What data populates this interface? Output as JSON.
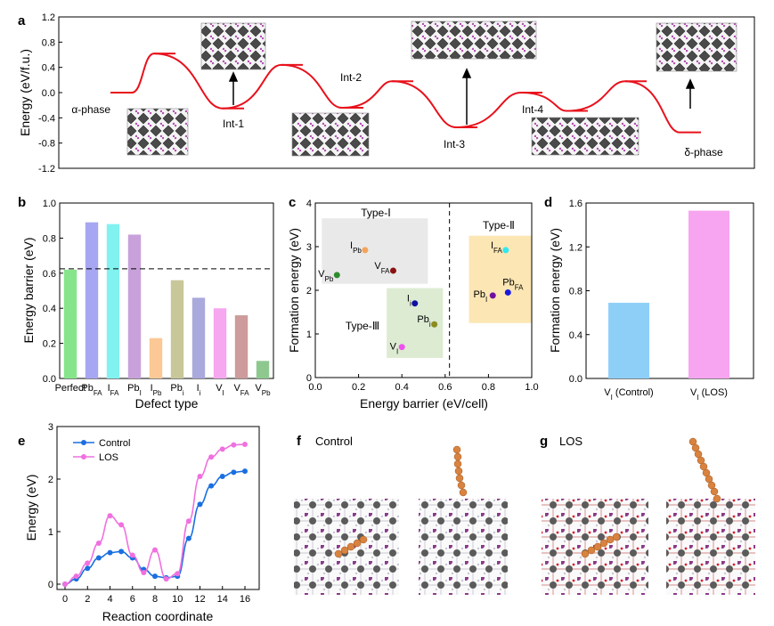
{
  "panel_letters": [
    "a",
    "b",
    "c",
    "d",
    "e",
    "f",
    "g"
  ],
  "chart_data": [
    {
      "panel": "a",
      "type": "line",
      "ylabel": "Energy (eV/f.u.)",
      "ylim": [
        -1.2,
        1.2
      ],
      "yticks": [
        "1.2",
        "0.8",
        "0.4",
        "0.0",
        "-0.4",
        "-0.8",
        "-1.2"
      ],
      "ytick_values": [
        1.2,
        0.8,
        0.4,
        0.0,
        -0.4,
        -0.8,
        -1.2
      ],
      "states": [
        {
          "label": "α-phase",
          "value": 0.0
        },
        {
          "label": "",
          "value": 0.62
        },
        {
          "label": "Int-1",
          "value": -0.25
        },
        {
          "label": "",
          "value": 0.44
        },
        {
          "label": "Int-2",
          "value": -0.24
        },
        {
          "label": "",
          "value": 0.18
        },
        {
          "label": "Int-3",
          "value": -0.55
        },
        {
          "label": "",
          "value": 0.0
        },
        {
          "label": "Int-4",
          "value": -0.29
        },
        {
          "label": "",
          "value": 0.18
        },
        {
          "label": "δ-phase",
          "value": -0.63
        }
      ],
      "line_color": "#e8111b"
    },
    {
      "panel": "b",
      "type": "bar",
      "xlabel": "Defect type",
      "ylabel": "Energy barrier (eV)",
      "ylim": [
        0,
        1.0
      ],
      "yticks": [
        "0.0",
        "0.2",
        "0.4",
        "0.6",
        "0.8",
        "1.0"
      ],
      "ytick_values": [
        0,
        0.2,
        0.4,
        0.6,
        0.8,
        1.0
      ],
      "categories": [
        {
          "main": "Perfect",
          "sub": ""
        },
        {
          "main": "Pb",
          "sub": "FA"
        },
        {
          "main": "I",
          "sub": "FA"
        },
        {
          "main": "Pb",
          "sub": "I"
        },
        {
          "main": "I",
          "sub": "Pb"
        },
        {
          "main": "Pb",
          "sub": "i"
        },
        {
          "main": "I",
          "sub": "i"
        },
        {
          "main": "V",
          "sub": "I"
        },
        {
          "main": "V",
          "sub": "FA"
        },
        {
          "main": "V",
          "sub": "Pb"
        }
      ],
      "values": [
        0.62,
        0.89,
        0.88,
        0.82,
        0.23,
        0.56,
        0.46,
        0.4,
        0.36,
        0.1
      ],
      "colors": [
        "#86e58a",
        "#a7a6f2",
        "#82f2f0",
        "#c8a1db",
        "#fbc896",
        "#c8c799",
        "#a9a9dc",
        "#f6a7f0",
        "#cd9b9b",
        "#8fc88f"
      ],
      "reference_line": 0.625
    },
    {
      "panel": "c",
      "type": "scatter",
      "xlabel": "Energy barrier (eV/cell)",
      "ylabel": "Formation energy (eV)",
      "xlim": [
        0.0,
        1.0
      ],
      "ylim": [
        0,
        4
      ],
      "xticks": [
        "0.0",
        "0.2",
        "0.4",
        "0.6",
        "0.8",
        "1.0"
      ],
      "xtick_values": [
        0,
        0.2,
        0.4,
        0.6,
        0.8,
        1.0
      ],
      "yticks": [
        "0",
        "1",
        "2",
        "3",
        "4"
      ],
      "ytick_values": [
        0,
        1,
        2,
        3,
        4
      ],
      "divider_x": 0.62,
      "groups": [
        {
          "name": "Type-Ⅰ",
          "x0": 0.03,
          "x1": 0.52,
          "y0": 2.15,
          "y1": 3.65,
          "color": "#e9e9e9"
        },
        {
          "name": "Type-Ⅱ",
          "x0": 0.71,
          "x1": 1.0,
          "y0": 1.25,
          "y1": 3.25,
          "color": "#fbe6b4"
        },
        {
          "name": "Type-Ⅲ",
          "x0": 0.33,
          "x1": 0.59,
          "y0": 0.45,
          "y1": 2.05,
          "color": "#dcebd2"
        }
      ],
      "points": [
        {
          "main": "V",
          "sub": "Pb",
          "x": 0.1,
          "y": 2.35,
          "color": "#2e8b2e"
        },
        {
          "main": "I",
          "sub": "Pb",
          "x": 0.23,
          "y": 2.92,
          "color": "#f4a45a"
        },
        {
          "main": "V",
          "sub": "FA",
          "x": 0.36,
          "y": 2.45,
          "color": "#8b1010"
        },
        {
          "main": "I",
          "sub": "i",
          "x": 0.46,
          "y": 1.7,
          "color": "#1010a0"
        },
        {
          "main": "Pb",
          "sub": "i",
          "x": 0.55,
          "y": 1.22,
          "color": "#8b8b20"
        },
        {
          "main": "V",
          "sub": "I",
          "x": 0.4,
          "y": 0.7,
          "color": "#f050f0"
        },
        {
          "main": "I",
          "sub": "FA",
          "x": 0.88,
          "y": 2.92,
          "color": "#30e8f0"
        },
        {
          "main": "Pb",
          "sub": "I",
          "x": 0.82,
          "y": 1.88,
          "color": "#7010a0"
        },
        {
          "main": "Pb",
          "sub": "FA",
          "x": 0.89,
          "y": 1.95,
          "color": "#1818e0"
        }
      ]
    },
    {
      "panel": "d",
      "type": "bar",
      "ylabel": "Formation energy (eV)",
      "ylim": [
        0,
        1.6
      ],
      "yticks": [
        "0.0",
        "0.4",
        "0.8",
        "1.2",
        "1.6"
      ],
      "ytick_values": [
        0,
        0.4,
        0.8,
        1.2,
        1.6
      ],
      "categories": [
        {
          "main": "V",
          "sub": "I",
          "suffix": " (Control)"
        },
        {
          "main": "V",
          "sub": "I",
          "suffix": " (LOS)"
        }
      ],
      "values": [
        0.69,
        1.53
      ],
      "colors": [
        "#8ecff8",
        "#f7a5f0"
      ]
    },
    {
      "panel": "e",
      "type": "line",
      "xlabel": "Reaction coordinate",
      "ylabel": "Energy (eV)",
      "xlim": [
        0,
        16.5
      ],
      "ylim": [
        0,
        3
      ],
      "xticks": [
        "0",
        "2",
        "4",
        "6",
        "8",
        "10",
        "12",
        "14",
        "16"
      ],
      "xtick_values": [
        0,
        2,
        4,
        6,
        8,
        10,
        12,
        14,
        16
      ],
      "yticks": [
        "0",
        "1",
        "2",
        "3"
      ],
      "ytick_values": [
        0,
        1,
        2,
        3
      ],
      "series": [
        {
          "name": "Control",
          "color": "#1a6fe0",
          "x": [
            0,
            1,
            2,
            3,
            4,
            5,
            6,
            7,
            8,
            9,
            10,
            11,
            12,
            13,
            14,
            15,
            16
          ],
          "y": [
            0.0,
            0.1,
            0.3,
            0.5,
            0.6,
            0.62,
            0.5,
            0.28,
            0.15,
            0.12,
            0.15,
            0.87,
            1.52,
            1.87,
            2.05,
            2.13,
            2.15
          ]
        },
        {
          "name": "LOS",
          "color": "#f070e0",
          "x": [
            0,
            1,
            2,
            3,
            4,
            5,
            6,
            7,
            8,
            9,
            10,
            11,
            12,
            13,
            14,
            15,
            16
          ],
          "y": [
            0.0,
            0.15,
            0.4,
            0.78,
            1.3,
            1.13,
            0.55,
            0.22,
            0.65,
            0.1,
            0.2,
            1.2,
            2.05,
            2.42,
            2.57,
            2.65,
            2.66
          ]
        }
      ]
    }
  ],
  "panel_f_title": "Control",
  "panel_g_title": "LOS"
}
